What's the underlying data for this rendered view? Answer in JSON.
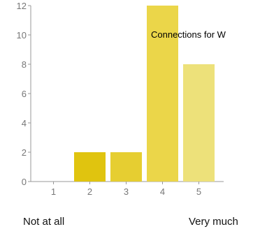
{
  "chart_data": {
    "type": "bar",
    "categories": [
      "1",
      "2",
      "3",
      "4",
      "5"
    ],
    "values": [
      0,
      2,
      2,
      12,
      8
    ],
    "colors": [
      "#e0c40f",
      "#e0c40f",
      "#e6ce31",
      "#ebd649",
      "#ede17a"
    ],
    "ylim": [
      0,
      12
    ],
    "yticks": [
      "0",
      "2",
      "4",
      "6",
      "8",
      "10",
      "12"
    ],
    "annotation": "Connections for W",
    "grid": false
  },
  "scale_labels": {
    "low": "Not at all",
    "high": "Very much"
  }
}
